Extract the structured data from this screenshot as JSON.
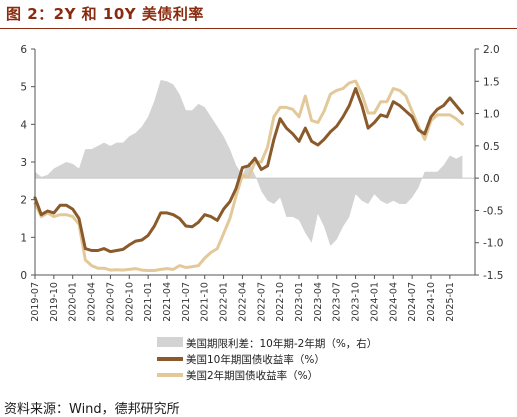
{
  "header": {
    "title": "图 2：2Y 和 10Y 美债利率"
  },
  "footer": {
    "source": "资料来源：Wind，德邦研究所"
  },
  "colors": {
    "spread": "#d3d3d3",
    "ten_year": "#8b5a2b",
    "two_year": "#e3c99a",
    "title": "#8a2b0f"
  },
  "chart_data": {
    "type": "line",
    "x_ticks": [
      "2019-07",
      "2019-10",
      "2020-01",
      "2020-04",
      "2020-07",
      "2020-10",
      "2021-01",
      "2021-04",
      "2021-07",
      "2021-10",
      "2022-01",
      "2022-04",
      "2022-07",
      "2022-10",
      "2023-01",
      "2023-04",
      "2023-07",
      "2023-10",
      "2024-01",
      "2024-04",
      "2024-07",
      "2024-10",
      "2025-01"
    ],
    "y_left": {
      "ticks": [
        "0",
        "1",
        "2",
        "3",
        "4",
        "5",
        "6"
      ],
      "lim": [
        0,
        6
      ]
    },
    "y_right": {
      "ticks": [
        "-1.5",
        "-1.0",
        "-0.5",
        "0.0",
        "0.5",
        "1.0",
        "1.5",
        "2.0"
      ],
      "lim": [
        -1.5,
        2.0
      ]
    },
    "x_start": "2019-07",
    "series": [
      {
        "name": "美国期限利差：10年期-2年期（%，右）",
        "type": "area",
        "axis": "right",
        "points": [
          [
            "2019-07",
            0.1
          ],
          [
            "2019-08",
            0.02
          ],
          [
            "2019-09",
            0.05
          ],
          [
            "2019-10",
            0.15
          ],
          [
            "2019-11",
            0.2
          ],
          [
            "2019-12",
            0.25
          ],
          [
            "2020-01",
            0.22
          ],
          [
            "2020-02",
            0.15
          ],
          [
            "2020-03",
            0.45
          ],
          [
            "2020-04",
            0.45
          ],
          [
            "2020-05",
            0.5
          ],
          [
            "2020-06",
            0.55
          ],
          [
            "2020-07",
            0.5
          ],
          [
            "2020-08",
            0.55
          ],
          [
            "2020-09",
            0.55
          ],
          [
            "2020-10",
            0.65
          ],
          [
            "2020-11",
            0.7
          ],
          [
            "2020-12",
            0.8
          ],
          [
            "2021-01",
            0.95
          ],
          [
            "2021-02",
            1.2
          ],
          [
            "2021-03",
            1.52
          ],
          [
            "2021-04",
            1.5
          ],
          [
            "2021-05",
            1.45
          ],
          [
            "2021-06",
            1.3
          ],
          [
            "2021-07",
            1.05
          ],
          [
            "2021-08",
            1.05
          ],
          [
            "2021-09",
            1.15
          ],
          [
            "2021-10",
            1.1
          ],
          [
            "2021-11",
            0.95
          ],
          [
            "2021-12",
            0.8
          ],
          [
            "2022-01",
            0.65
          ],
          [
            "2022-02",
            0.45
          ],
          [
            "2022-03",
            0.2
          ],
          [
            "2022-04",
            0.05
          ],
          [
            "2022-05",
            0.25
          ],
          [
            "2022-06",
            0.05
          ],
          [
            "2022-07",
            -0.2
          ],
          [
            "2022-08",
            -0.35
          ],
          [
            "2022-09",
            -0.4
          ],
          [
            "2022-10",
            -0.3
          ],
          [
            "2022-11",
            -0.6
          ],
          [
            "2022-12",
            -0.6
          ],
          [
            "2023-01",
            -0.65
          ],
          [
            "2023-02",
            -0.85
          ],
          [
            "2023-03",
            -1.0
          ],
          [
            "2023-04",
            -0.55
          ],
          [
            "2023-05",
            -0.75
          ],
          [
            "2023-06",
            -1.05
          ],
          [
            "2023-07",
            -0.95
          ],
          [
            "2023-08",
            -0.75
          ],
          [
            "2023-09",
            -0.6
          ],
          [
            "2023-10",
            -0.25
          ],
          [
            "2023-11",
            -0.35
          ],
          [
            "2023-12",
            -0.4
          ],
          [
            "2024-01",
            -0.25
          ],
          [
            "2024-02",
            -0.35
          ],
          [
            "2024-03",
            -0.4
          ],
          [
            "2024-04",
            -0.35
          ],
          [
            "2024-05",
            -0.4
          ],
          [
            "2024-06",
            -0.4
          ],
          [
            "2024-07",
            -0.3
          ],
          [
            "2024-08",
            -0.15
          ],
          [
            "2024-09",
            0.1
          ],
          [
            "2024-10",
            0.1
          ],
          [
            "2024-11",
            0.1
          ],
          [
            "2024-12",
            0.2
          ],
          [
            "2025-01",
            0.35
          ],
          [
            "2025-02",
            0.3
          ],
          [
            "2025-03",
            0.35
          ]
        ]
      },
      {
        "name": "美国10年期国债收益率（%）",
        "type": "line",
        "axis": "left",
        "points": [
          [
            "2019-07",
            2.05
          ],
          [
            "2019-08",
            1.6
          ],
          [
            "2019-09",
            1.7
          ],
          [
            "2019-10",
            1.65
          ],
          [
            "2019-11",
            1.85
          ],
          [
            "2019-12",
            1.85
          ],
          [
            "2020-01",
            1.75
          ],
          [
            "2020-02",
            1.5
          ],
          [
            "2020-03",
            0.7
          ],
          [
            "2020-04",
            0.65
          ],
          [
            "2020-05",
            0.65
          ],
          [
            "2020-06",
            0.7
          ],
          [
            "2020-07",
            0.62
          ],
          [
            "2020-08",
            0.65
          ],
          [
            "2020-09",
            0.68
          ],
          [
            "2020-10",
            0.8
          ],
          [
            "2020-11",
            0.9
          ],
          [
            "2020-12",
            0.93
          ],
          [
            "2021-01",
            1.05
          ],
          [
            "2021-02",
            1.3
          ],
          [
            "2021-03",
            1.65
          ],
          [
            "2021-04",
            1.65
          ],
          [
            "2021-05",
            1.6
          ],
          [
            "2021-06",
            1.5
          ],
          [
            "2021-07",
            1.3
          ],
          [
            "2021-08",
            1.28
          ],
          [
            "2021-09",
            1.4
          ],
          [
            "2021-10",
            1.6
          ],
          [
            "2021-11",
            1.55
          ],
          [
            "2021-12",
            1.45
          ],
          [
            "2022-01",
            1.75
          ],
          [
            "2022-02",
            1.95
          ],
          [
            "2022-03",
            2.3
          ],
          [
            "2022-04",
            2.85
          ],
          [
            "2022-05",
            2.9
          ],
          [
            "2022-06",
            3.1
          ],
          [
            "2022-07",
            2.8
          ],
          [
            "2022-08",
            2.9
          ],
          [
            "2022-09",
            3.6
          ],
          [
            "2022-10",
            4.15
          ],
          [
            "2022-11",
            3.9
          ],
          [
            "2022-12",
            3.75
          ],
          [
            "2023-01",
            3.55
          ],
          [
            "2023-02",
            3.9
          ],
          [
            "2023-03",
            3.55
          ],
          [
            "2023-04",
            3.45
          ],
          [
            "2023-05",
            3.6
          ],
          [
            "2023-06",
            3.8
          ],
          [
            "2023-07",
            3.95
          ],
          [
            "2023-08",
            4.2
          ],
          [
            "2023-09",
            4.5
          ],
          [
            "2023-10",
            4.95
          ],
          [
            "2023-11",
            4.5
          ],
          [
            "2023-12",
            3.9
          ],
          [
            "2024-01",
            4.05
          ],
          [
            "2024-02",
            4.25
          ],
          [
            "2024-03",
            4.2
          ],
          [
            "2024-04",
            4.6
          ],
          [
            "2024-05",
            4.5
          ],
          [
            "2024-06",
            4.35
          ],
          [
            "2024-07",
            4.2
          ],
          [
            "2024-08",
            3.85
          ],
          [
            "2024-09",
            3.75
          ],
          [
            "2024-10",
            4.2
          ],
          [
            "2024-11",
            4.4
          ],
          [
            "2024-12",
            4.5
          ],
          [
            "2025-01",
            4.7
          ],
          [
            "2025-02",
            4.5
          ],
          [
            "2025-03",
            4.3
          ]
        ]
      },
      {
        "name": "美国2年期国债收益率（%）",
        "type": "line",
        "axis": "left",
        "points": [
          [
            "2019-07",
            1.9
          ],
          [
            "2019-08",
            1.55
          ],
          [
            "2019-09",
            1.65
          ],
          [
            "2019-10",
            1.55
          ],
          [
            "2019-11",
            1.6
          ],
          [
            "2019-12",
            1.6
          ],
          [
            "2020-01",
            1.55
          ],
          [
            "2020-02",
            1.35
          ],
          [
            "2020-03",
            0.4
          ],
          [
            "2020-04",
            0.25
          ],
          [
            "2020-05",
            0.18
          ],
          [
            "2020-06",
            0.18
          ],
          [
            "2020-07",
            0.13
          ],
          [
            "2020-08",
            0.14
          ],
          [
            "2020-09",
            0.13
          ],
          [
            "2020-10",
            0.15
          ],
          [
            "2020-11",
            0.17
          ],
          [
            "2020-12",
            0.13
          ],
          [
            "2021-01",
            0.12
          ],
          [
            "2021-02",
            0.12
          ],
          [
            "2021-03",
            0.15
          ],
          [
            "2021-04",
            0.17
          ],
          [
            "2021-05",
            0.15
          ],
          [
            "2021-06",
            0.25
          ],
          [
            "2021-07",
            0.2
          ],
          [
            "2021-08",
            0.22
          ],
          [
            "2021-09",
            0.25
          ],
          [
            "2021-10",
            0.45
          ],
          [
            "2021-11",
            0.6
          ],
          [
            "2021-12",
            0.7
          ],
          [
            "2022-01",
            1.1
          ],
          [
            "2022-02",
            1.5
          ],
          [
            "2022-03",
            2.1
          ],
          [
            "2022-04",
            2.65
          ],
          [
            "2022-05",
            2.6
          ],
          [
            "2022-06",
            3.0
          ],
          [
            "2022-07",
            3.0
          ],
          [
            "2022-08",
            3.4
          ],
          [
            "2022-09",
            4.2
          ],
          [
            "2022-10",
            4.45
          ],
          [
            "2022-11",
            4.45
          ],
          [
            "2022-12",
            4.4
          ],
          [
            "2023-01",
            4.2
          ],
          [
            "2023-02",
            4.75
          ],
          [
            "2023-03",
            4.1
          ],
          [
            "2023-04",
            4.05
          ],
          [
            "2023-05",
            4.35
          ],
          [
            "2023-06",
            4.8
          ],
          [
            "2023-07",
            4.9
          ],
          [
            "2023-08",
            4.95
          ],
          [
            "2023-09",
            5.1
          ],
          [
            "2023-10",
            5.15
          ],
          [
            "2023-11",
            4.8
          ],
          [
            "2023-12",
            4.3
          ],
          [
            "2024-01",
            4.3
          ],
          [
            "2024-02",
            4.6
          ],
          [
            "2024-03",
            4.6
          ],
          [
            "2024-04",
            4.95
          ],
          [
            "2024-05",
            4.9
          ],
          [
            "2024-06",
            4.75
          ],
          [
            "2024-07",
            4.35
          ],
          [
            "2024-08",
            3.95
          ],
          [
            "2024-09",
            3.6
          ],
          [
            "2024-10",
            4.1
          ],
          [
            "2024-11",
            4.25
          ],
          [
            "2024-12",
            4.25
          ],
          [
            "2025-01",
            4.25
          ],
          [
            "2025-02",
            4.15
          ],
          [
            "2025-03",
            4.0
          ]
        ]
      }
    ]
  }
}
